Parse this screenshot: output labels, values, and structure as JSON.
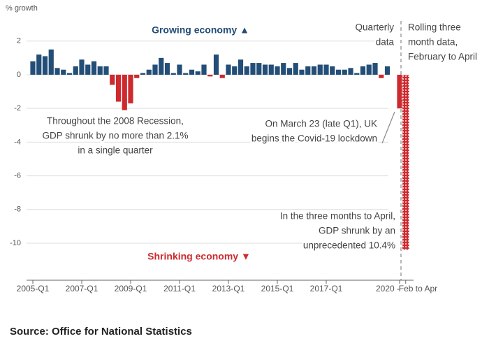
{
  "chart_data": {
    "type": "bar",
    "y_label": "% growth",
    "categories": [
      "2005-Q1",
      null,
      null,
      null,
      null,
      null,
      null,
      null,
      "2007-Q1",
      null,
      null,
      null,
      null,
      null,
      null,
      null,
      "2009-Q1",
      null,
      null,
      null,
      null,
      null,
      null,
      null,
      "2011-Q1",
      null,
      null,
      null,
      null,
      null,
      null,
      null,
      "2013-Q1",
      null,
      null,
      null,
      null,
      null,
      null,
      null,
      "2015-Q1",
      null,
      null,
      null,
      null,
      null,
      null,
      null,
      "2017-Q1",
      null,
      null,
      null,
      null,
      null,
      null,
      null,
      null,
      null,
      null,
      null,
      "2020 -",
      "Feb to Apr"
    ],
    "values": [
      0.8,
      1.2,
      1.1,
      1.5,
      0.4,
      0.3,
      0.1,
      0.5,
      0.9,
      0.6,
      0.8,
      0.5,
      0.5,
      -0.6,
      -1.6,
      -2.1,
      -1.7,
      -0.2,
      0.1,
      0.3,
      0.6,
      1.0,
      0.7,
      0.1,
      0.6,
      0.1,
      0.3,
      0.2,
      0.6,
      -0.1,
      1.2,
      -0.2,
      0.6,
      0.5,
      0.9,
      0.5,
      0.7,
      0.7,
      0.6,
      0.6,
      0.5,
      0.7,
      0.4,
      0.7,
      0.3,
      0.5,
      0.5,
      0.6,
      0.6,
      0.5,
      0.3,
      0.3,
      0.4,
      0.1,
      0.5,
      0.6,
      0.7,
      -0.2,
      0.5,
      0.0,
      -2.0,
      -10.4
    ],
    "positive_color": "#234e77",
    "negative_color": "#cc2a2f",
    "ylim": [
      -12.2,
      3.4
    ],
    "yticks": [
      2,
      0,
      -2,
      -4,
      -6,
      -8,
      -10
    ],
    "grid": true,
    "annotations": {
      "growing": "Growing economy ▲",
      "shrinking": "Shrinking economy ▼",
      "quarterly": [
        "Quarterly",
        "data"
      ],
      "rolling": [
        "Rolling three",
        "month data,",
        "February to April"
      ],
      "recession": [
        "Throughout the 2008 Recession,",
        "GDP shrunk by no more than 2.1%",
        "in a single quarter"
      ],
      "covid": [
        "On March 23 (late Q1), UK",
        "begins the Covid-19 lockdown"
      ],
      "april": [
        "In the three months to April,",
        "GDP shrunk by an",
        "unprecedented 10.4%"
      ]
    },
    "source": "Source: Office for National Statistics"
  }
}
